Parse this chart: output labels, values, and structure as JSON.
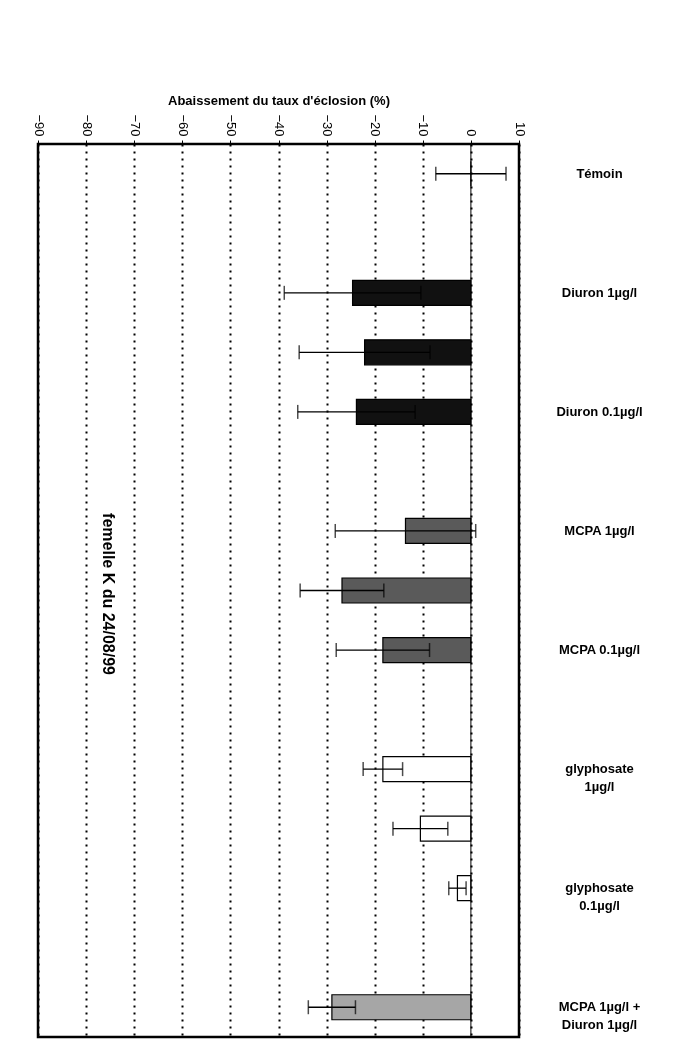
{
  "chart_data": {
    "type": "bar",
    "orientation": "horizontal",
    "xlabel": "Abaissement du taux d'éclosion (%)",
    "categories": [
      "Témoin",
      null,
      "Diuron 1µg/l",
      null,
      "Diuron 0.1µg/l",
      null,
      "MCPA 1µg/l",
      null,
      "MCPA 0.1µg/l",
      null,
      "glyphosate\n1µg/l",
      null,
      "glyphosate\n0.1µg/l",
      null,
      "MCPA 1µg/l +\nDiuron 1µg/l"
    ],
    "values": [
      0,
      null,
      -24.6,
      -22.1,
      -23.8,
      null,
      -13.6,
      -26.8,
      -18.3,
      null,
      -18.3,
      -10.5,
      -2.8,
      null,
      -28.9
    ],
    "errors": [
      7.3,
      null,
      14.2,
      13.6,
      12.2,
      null,
      14.6,
      8.7,
      9.7,
      null,
      4.1,
      5.7,
      1.8,
      null,
      4.9
    ],
    "colors": [
      "#000000",
      null,
      "#111111",
      "#111111",
      "#111111",
      null,
      "#5a5a5a",
      "#5a5a5a",
      "#5a5a5a",
      null,
      "#ffffff",
      "#ffffff",
      "#ffffff",
      null,
      "#a6a6a6"
    ],
    "xlim": [
      -90,
      10
    ],
    "xticks": [
      -90,
      -80,
      -70,
      -60,
      -50,
      -40,
      -30,
      -20,
      -10,
      0,
      10
    ],
    "grid": "x",
    "ref_lines": [
      {
        "axis": "x",
        "value": 0
      }
    ],
    "annotations": [
      "femelle K du 24/08/99"
    ]
  }
}
